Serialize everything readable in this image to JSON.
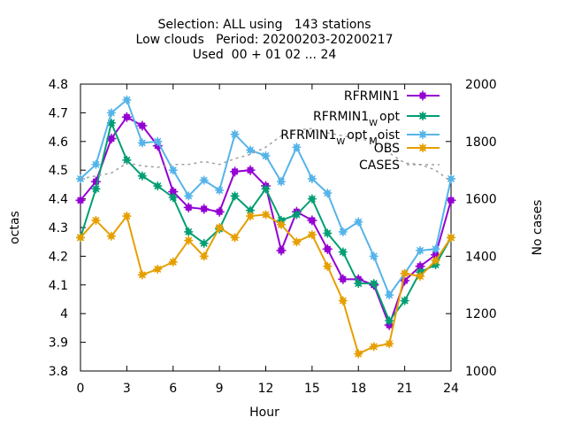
{
  "chart_data": {
    "type": "line",
    "title_lines": [
      "Selection: ALL using   143 stations",
      "Low clouds   Period: 20200203-20200217",
      "Used  00 + 01 02 ... 24"
    ],
    "xlabel": "Hour",
    "ylabel": "octas",
    "y2label": "No cases",
    "xlim": [
      0,
      24
    ],
    "ylim": [
      3.8,
      4.8
    ],
    "y2lim": [
      1000,
      2000
    ],
    "xticks": [
      0,
      3,
      6,
      9,
      12,
      15,
      18,
      21,
      24
    ],
    "xtick_labels": [
      "0",
      "3",
      "6",
      "9",
      "12",
      "15",
      "18",
      "21",
      "24"
    ],
    "yticks": [
      3.8,
      3.9,
      4.0,
      4.1,
      4.2,
      4.3,
      4.4,
      4.5,
      4.6,
      4.7,
      4.8
    ],
    "ytick_labels": [
      "3.8",
      "3.9",
      "4",
      "4.1",
      "4.2",
      "4.3",
      "4.4",
      "4.5",
      "4.6",
      "4.7",
      "4.8"
    ],
    "y2ticks": [
      1000,
      1200,
      1400,
      1600,
      1800,
      2000
    ],
    "y2tick_labels": [
      "1000",
      "1200",
      "1400",
      "1600",
      "1800",
      "2000"
    ],
    "legend_position": "top-right",
    "grid": false,
    "x": [
      0,
      1,
      2,
      3,
      4,
      5,
      6,
      7,
      8,
      9,
      10,
      11,
      12,
      13,
      14,
      15,
      16,
      17,
      18,
      19,
      20,
      21,
      22,
      23,
      24
    ],
    "series": [
      {
        "name": "RFRMIN1",
        "label_main": "RFRMIN1",
        "label_sub": "",
        "color": "#9400d3",
        "marker": "plus-box",
        "axis": "y",
        "values": [
          4.395,
          4.46,
          4.61,
          4.685,
          4.655,
          4.585,
          4.425,
          4.37,
          4.365,
          4.355,
          4.495,
          4.5,
          4.445,
          4.22,
          4.355,
          4.325,
          4.225,
          4.12,
          4.12,
          4.1,
          3.96,
          4.115,
          4.165,
          4.205,
          4.395
        ]
      },
      {
        "name": "RFRMIN1 W opt",
        "label_main": "RFRMIN1",
        "label_sub": "W",
        "label_tail": "opt",
        "color": "#009e73",
        "marker": "star",
        "axis": "y",
        "values": [
          4.265,
          4.435,
          4.665,
          4.535,
          4.48,
          4.445,
          4.405,
          4.285,
          4.245,
          4.295,
          4.41,
          4.36,
          4.435,
          4.325,
          4.345,
          4.4,
          4.28,
          4.215,
          4.105,
          4.105,
          3.975,
          4.045,
          4.145,
          4.17,
          4.265
        ]
      },
      {
        "name": "RFRMIN1 W opt M oist",
        "label_main": "RFRMIN1",
        "label_sub": "W",
        "label_tail": "opt",
        "label_sub2": "M",
        "label_tail2": "oist",
        "color": "#56b4e9",
        "marker": "star",
        "axis": "y",
        "values": [
          4.47,
          4.52,
          4.7,
          4.745,
          4.595,
          4.6,
          4.5,
          4.41,
          4.465,
          4.43,
          4.625,
          4.57,
          4.55,
          4.46,
          4.58,
          4.47,
          4.42,
          4.285,
          4.32,
          4.2,
          4.065,
          4.14,
          4.22,
          4.225,
          4.47
        ]
      },
      {
        "name": "OBS",
        "label_main": "OBS",
        "label_sub": "",
        "color": "#e69f00",
        "marker": "star",
        "axis": "y",
        "values": [
          4.265,
          4.325,
          4.27,
          4.34,
          4.135,
          4.155,
          4.18,
          4.255,
          4.2,
          4.3,
          4.265,
          4.34,
          4.345,
          4.31,
          4.25,
          4.275,
          4.165,
          4.045,
          3.86,
          3.885,
          3.895,
          4.14,
          4.13,
          4.185,
          4.265
        ]
      },
      {
        "name": "CASES",
        "label_main": "CASES",
        "label_sub": "",
        "color": "#a0a0a0",
        "marker": "none",
        "dashed": true,
        "axis": "y2",
        "values": [
          1670,
          1680,
          1690,
          1725,
          1715,
          1710,
          1720,
          1720,
          1730,
          1720,
          1740,
          1755,
          1780,
          1820,
          1840,
          1845,
          1830,
          1820,
          1810,
          1800,
          1760,
          1725,
          1720,
          1700,
          1660
        ]
      }
    ]
  }
}
